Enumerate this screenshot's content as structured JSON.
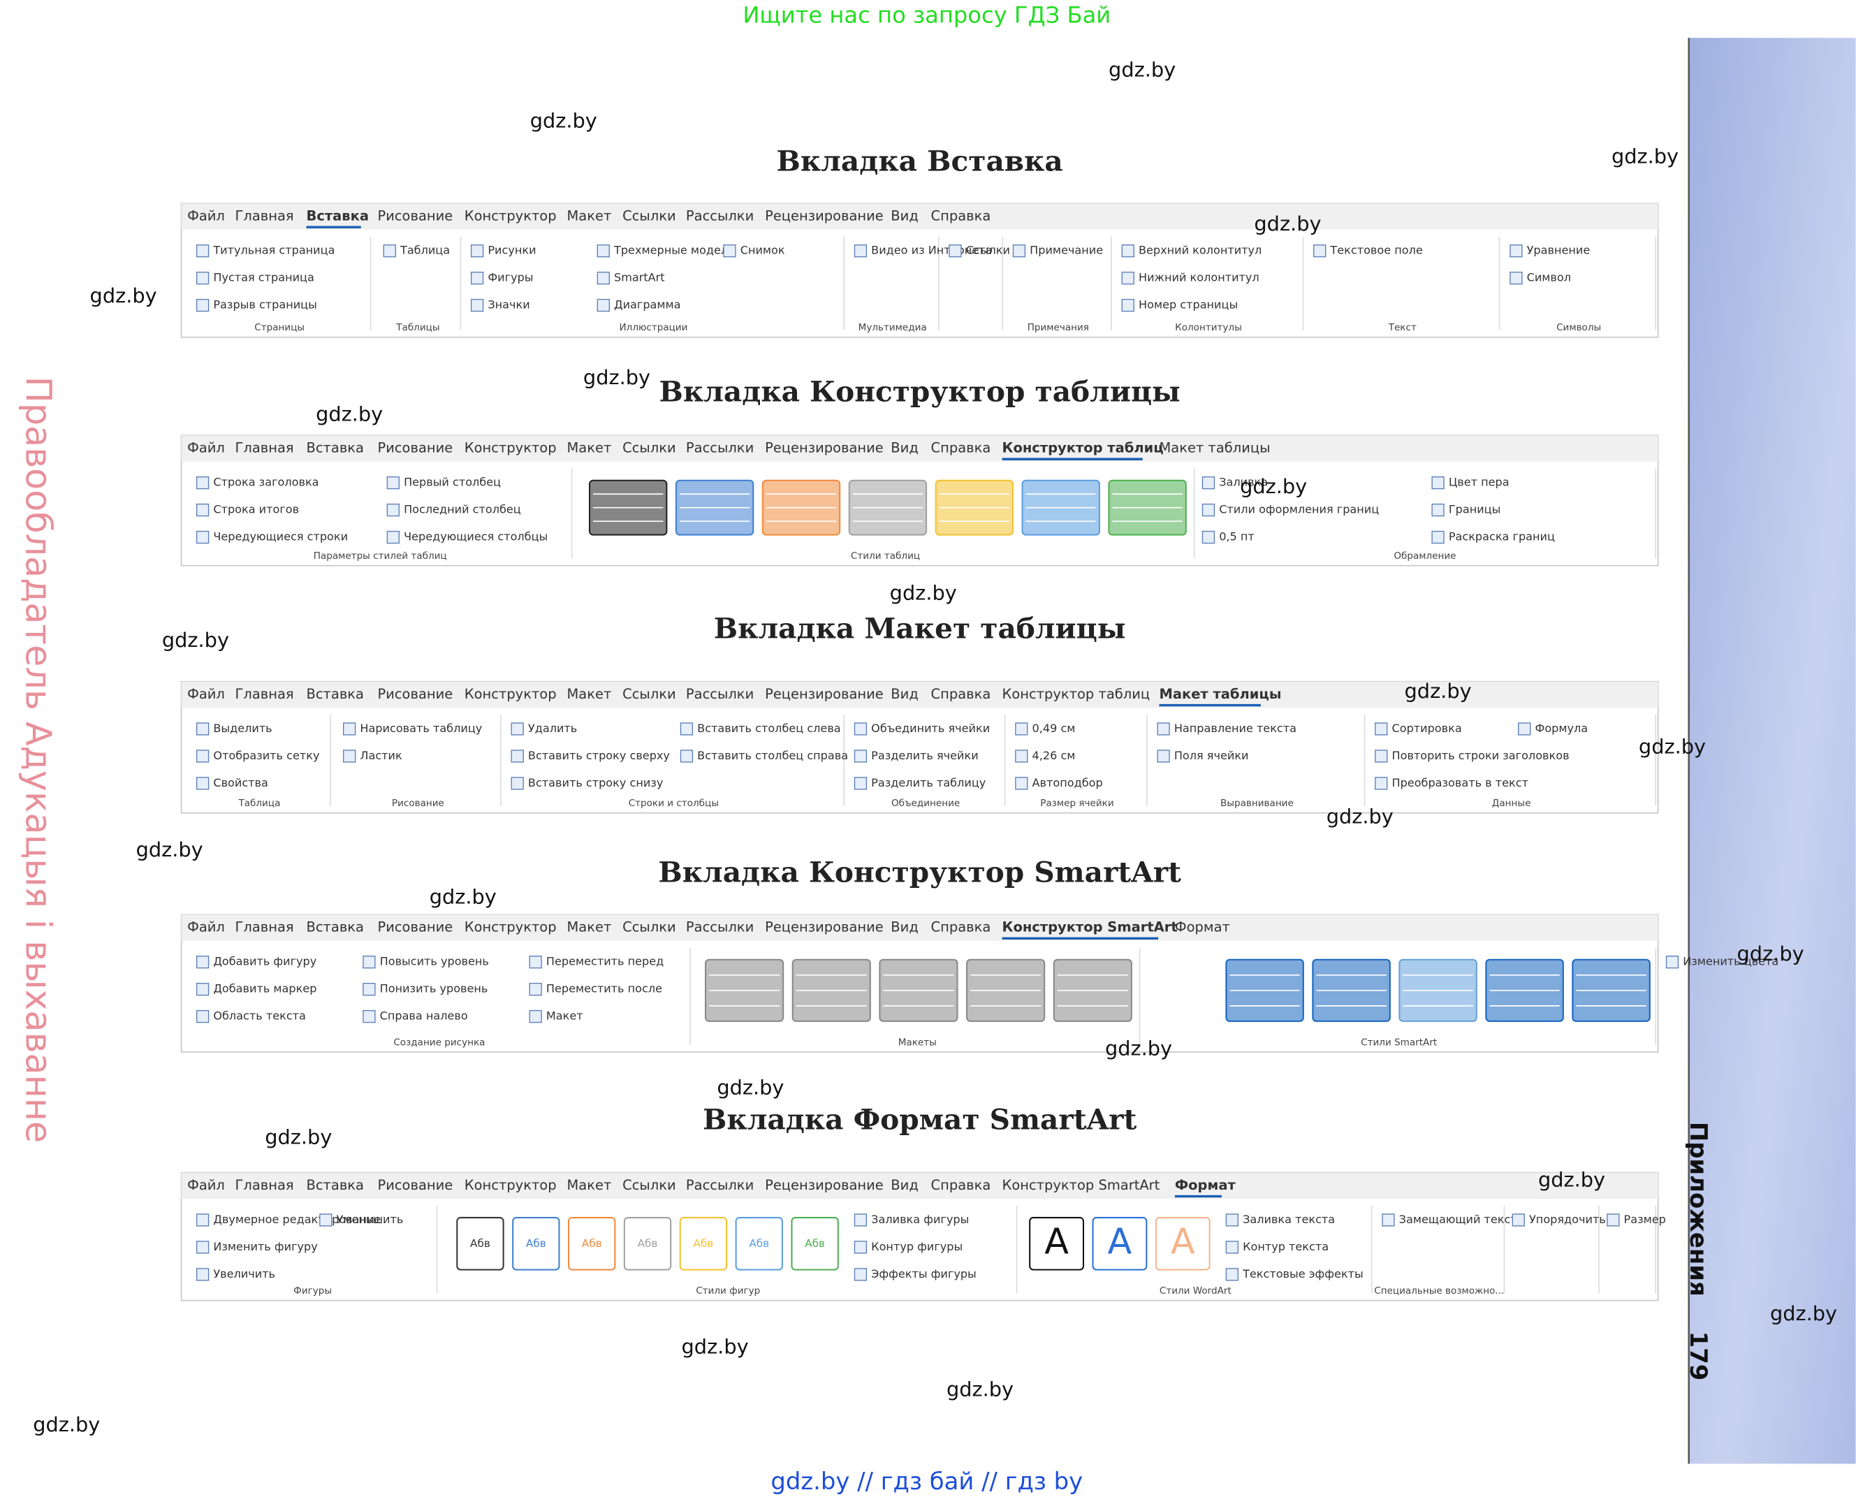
{
  "header": {
    "promo": "Ищите нас по запросу ГДЗ Бай",
    "side_text": "Правообладатель Адукацыя і выхаванне",
    "section": "Приложения",
    "page_number": "179",
    "footer": "gdz.by  //  гдз бай  //  гдз by"
  },
  "watermarks": [
    "gdz.by",
    "gdz.by",
    "gdz.by",
    "gdz.by",
    "gdz.by",
    "gdz.by",
    "gdz.by",
    "gdz.by",
    "gdz.by",
    "gdz.by",
    "gdz.by",
    "gdz.by",
    "gdz.by",
    "gdz.by",
    "gdz.by",
    "gdz.by",
    "gdz.by",
    "gdz.by",
    "gdz.by",
    "gdz.by",
    "gdz.by",
    "gdz.by",
    "gdz.by",
    "gdz.by"
  ],
  "ribbons": [
    {
      "title": "Вкладка Вставка",
      "active": 2,
      "tabs": [
        "Файл",
        "Главная",
        "Вставка",
        "Рисование",
        "Конструктор",
        "Макет",
        "Ссылки",
        "Рассылки",
        "Рецензирование",
        "Вид",
        "Справка"
      ],
      "groups": [
        {
          "label": "Страницы",
          "items": [
            "Титульная страница",
            "Пустая страница",
            "Разрыв страницы"
          ]
        },
        {
          "label": "Таблицы",
          "items": [
            "Таблица"
          ]
        },
        {
          "label": "Иллюстрации",
          "items": [
            "Рисунки",
            "Фигуры",
            "Значки",
            "Трехмерные модели",
            "SmartArt",
            "Диаграмма",
            "Снимок"
          ]
        },
        {
          "label": "Мультимедиа",
          "items": [
            "Видео из Интернета"
          ]
        },
        {
          "items": [
            "Ссылки"
          ]
        },
        {
          "label": "Примечания",
          "items": [
            "Примечание"
          ]
        },
        {
          "label": "Колонтитулы",
          "items": [
            "Верхний колонтитул",
            "Нижний колонтитул",
            "Номер страницы"
          ]
        },
        {
          "label": "Текст",
          "items": [
            "Текстовое поле"
          ]
        },
        {
          "label": "Символы",
          "items": [
            "Уравнение",
            "Символ"
          ]
        }
      ]
    },
    {
      "title": "Вкладка Конструктор таблицы",
      "active": 11,
      "tabs": [
        "Файл",
        "Главная",
        "Вставка",
        "Рисование",
        "Конструктор",
        "Макет",
        "Ссылки",
        "Рассылки",
        "Рецензирование",
        "Вид",
        "Справка",
        "Конструктор таблиц",
        "Макет таблицы"
      ],
      "groups": [
        {
          "label": "Параметры стилей таблиц",
          "items": [
            "Строка заголовка",
            "Строка итогов",
            "Чередующиеся строки",
            "Первый столбец",
            "Последний столбец",
            "Чередующиеся столбцы"
          ]
        },
        {
          "label": "Стили таблиц",
          "swatches": [
            "#222222",
            "#3f7fd0",
            "#f08a3c",
            "#a0a0a0",
            "#f2c230",
            "#5a9de0",
            "#4caf50"
          ]
        },
        {
          "label": "Обрамление",
          "items": [
            "Заливка",
            "Стили оформления границ",
            "0,5 пт",
            "Цвет пера",
            "Границы",
            "Раскраска границ"
          ]
        }
      ]
    },
    {
      "title": "Вкладка Макет таблицы",
      "active": 12,
      "tabs": [
        "Файл",
        "Главная",
        "Вставка",
        "Рисование",
        "Конструктор",
        "Макет",
        "Ссылки",
        "Рассылки",
        "Рецензирование",
        "Вид",
        "Справка",
        "Конструктор таблиц",
        "Макет таблицы"
      ],
      "groups": [
        {
          "label": "Таблица",
          "items": [
            "Выделить",
            "Отобразить сетку",
            "Свойства"
          ]
        },
        {
          "label": "Рисование",
          "items": [
            "Нарисовать таблицу",
            "Ластик"
          ]
        },
        {
          "label": "Строки и столбцы",
          "items": [
            "Удалить",
            "Вставить строку сверху",
            "Вставить строку снизу",
            "Вставить столбец слева",
            "Вставить столбец справа"
          ]
        },
        {
          "label": "Объединение",
          "items": [
            "Объединить ячейки",
            "Разделить ячейки",
            "Разделить таблицу"
          ]
        },
        {
          "label": "Размер ячейки",
          "items": [
            "0,49 см",
            "4,26 см",
            "Автоподбор"
          ]
        },
        {
          "label": "Выравнивание",
          "items": [
            "Направление текста",
            "Поля ячейки"
          ]
        },
        {
          "label": "Данные",
          "items": [
            "Сортировка",
            "Повторить строки заголовков",
            "Преобразовать в текст",
            "Формула"
          ]
        }
      ]
    },
    {
      "title": "Вкладка Конструктор SmartArt",
      "active": 11,
      "tabs": [
        "Файл",
        "Главная",
        "Вставка",
        "Рисование",
        "Конструктор",
        "Макет",
        "Ссылки",
        "Рассылки",
        "Рецензирование",
        "Вид",
        "Справка",
        "Конструктор SmartArt",
        "Формат"
      ],
      "groups": [
        {
          "label": "Создание рисунка",
          "items": [
            "Добавить фигуру",
            "Добавить маркер",
            "Область текста",
            "Повысить уровень",
            "Понизить уровень",
            "Справа налево",
            "Переместить перед",
            "Переместить после",
            "Макет"
          ]
        },
        {
          "label": "Макеты",
          "swatches": [
            "#888888",
            "#888888",
            "#888888",
            "#888888",
            "#888888"
          ]
        },
        {
          "label": "Стили SmartArt",
          "items": [
            "Изменить цвета"
          ],
          "swatches": [
            "#1565c0",
            "#1565c0",
            "#64a0dc",
            "#1565c0",
            "#1565c0"
          ]
        }
      ]
    },
    {
      "title": "Вкладка Формат SmartArt",
      "active": 12,
      "tabs": [
        "Файл",
        "Главная",
        "Вставка",
        "Рисование",
        "Конструктор",
        "Макет",
        "Ссылки",
        "Рассылки",
        "Рецензирование",
        "Вид",
        "Справка",
        "Конструктор SmartArt",
        "Формат"
      ],
      "groups": [
        {
          "label": "Фигуры",
          "items": [
            "Двумерное редактирование",
            "Изменить фигуру",
            "Увеличить",
            "Уменьшить"
          ]
        },
        {
          "label": "Стили фигур",
          "swatch_label": "Абв",
          "swatches": [
            "#333333",
            "#3f7fd0",
            "#f08a3c",
            "#a0a0a0",
            "#f2c230",
            "#5a9de0",
            "#4caf50"
          ],
          "items": [
            "Заливка фигуры",
            "Контур фигуры",
            "Эффекты фигуры"
          ]
        },
        {
          "label": "Стили WordArt",
          "swatch_label": "A",
          "swatches": [
            "#111111",
            "#2a6fd6",
            "#f5b48a"
          ],
          "items": [
            "Заливка текста",
            "Контур текста",
            "Текстовые эффекты"
          ]
        },
        {
          "label": "Специальные возможно...",
          "items": [
            "Замещающий текст"
          ]
        },
        {
          "items": [
            "Упорядочить"
          ]
        },
        {
          "items": [
            "Размер"
          ]
        }
      ]
    }
  ]
}
